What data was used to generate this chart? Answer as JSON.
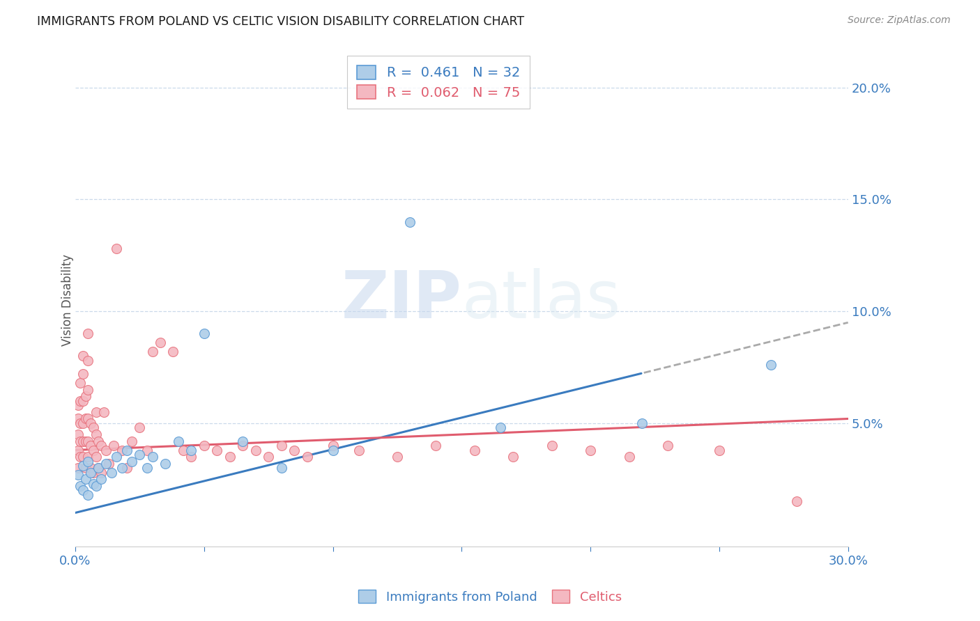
{
  "title": "IMMIGRANTS FROM POLAND VS CELTIC VISION DISABILITY CORRELATION CHART",
  "source": "Source: ZipAtlas.com",
  "ylabel": "Vision Disability",
  "x_min": 0.0,
  "x_max": 0.3,
  "y_min": -0.005,
  "y_max": 0.215,
  "y_ticks": [
    0.05,
    0.1,
    0.15,
    0.2
  ],
  "y_tick_labels": [
    "5.0%",
    "10.0%",
    "15.0%",
    "20.0%"
  ],
  "x_ticks": [
    0.0,
    0.05,
    0.1,
    0.15,
    0.2,
    0.25,
    0.3
  ],
  "blue_R": "0.461",
  "blue_N": "32",
  "pink_R": "0.062",
  "pink_N": "75",
  "blue_fill_color": "#aecde8",
  "pink_fill_color": "#f4b8c1",
  "blue_edge_color": "#5b9bd5",
  "pink_edge_color": "#e8737e",
  "blue_line_color": "#3a7bbf",
  "pink_line_color": "#e05c6e",
  "dash_color": "#aaaaaa",
  "watermark_color": "#d0dff0",
  "blue_points_x": [
    0.001,
    0.002,
    0.003,
    0.003,
    0.004,
    0.005,
    0.005,
    0.006,
    0.007,
    0.008,
    0.009,
    0.01,
    0.012,
    0.014,
    0.016,
    0.018,
    0.02,
    0.022,
    0.025,
    0.028,
    0.03,
    0.035,
    0.04,
    0.045,
    0.05,
    0.065,
    0.08,
    0.1,
    0.13,
    0.165,
    0.22,
    0.27
  ],
  "blue_points_y": [
    0.027,
    0.022,
    0.02,
    0.031,
    0.025,
    0.018,
    0.033,
    0.028,
    0.023,
    0.022,
    0.03,
    0.025,
    0.032,
    0.028,
    0.035,
    0.03,
    0.038,
    0.033,
    0.036,
    0.03,
    0.035,
    0.032,
    0.042,
    0.038,
    0.09,
    0.042,
    0.03,
    0.038,
    0.14,
    0.048,
    0.05,
    0.076
  ],
  "pink_points_x": [
    0.001,
    0.001,
    0.001,
    0.001,
    0.001,
    0.002,
    0.002,
    0.002,
    0.002,
    0.002,
    0.003,
    0.003,
    0.003,
    0.003,
    0.003,
    0.003,
    0.004,
    0.004,
    0.004,
    0.004,
    0.005,
    0.005,
    0.005,
    0.005,
    0.005,
    0.005,
    0.006,
    0.006,
    0.006,
    0.007,
    0.007,
    0.007,
    0.008,
    0.008,
    0.008,
    0.009,
    0.009,
    0.01,
    0.01,
    0.011,
    0.012,
    0.013,
    0.015,
    0.016,
    0.018,
    0.02,
    0.022,
    0.025,
    0.028,
    0.03,
    0.033,
    0.038,
    0.042,
    0.045,
    0.05,
    0.055,
    0.06,
    0.065,
    0.07,
    0.075,
    0.08,
    0.085,
    0.09,
    0.1,
    0.11,
    0.125,
    0.14,
    0.155,
    0.17,
    0.185,
    0.2,
    0.215,
    0.23,
    0.25,
    0.28
  ],
  "pink_points_y": [
    0.038,
    0.045,
    0.052,
    0.058,
    0.03,
    0.035,
    0.042,
    0.05,
    0.06,
    0.068,
    0.035,
    0.042,
    0.05,
    0.06,
    0.072,
    0.08,
    0.042,
    0.052,
    0.062,
    0.03,
    0.035,
    0.042,
    0.052,
    0.065,
    0.078,
    0.09,
    0.04,
    0.05,
    0.03,
    0.048,
    0.038,
    0.028,
    0.045,
    0.055,
    0.035,
    0.042,
    0.03,
    0.04,
    0.028,
    0.055,
    0.038,
    0.032,
    0.04,
    0.128,
    0.038,
    0.03,
    0.042,
    0.048,
    0.038,
    0.082,
    0.086,
    0.082,
    0.038,
    0.035,
    0.04,
    0.038,
    0.035,
    0.04,
    0.038,
    0.035,
    0.04,
    0.038,
    0.035,
    0.04,
    0.038,
    0.035,
    0.04,
    0.038,
    0.035,
    0.04,
    0.038,
    0.035,
    0.04,
    0.038,
    0.015
  ],
  "blue_line_x_start": 0.0,
  "blue_line_x_solid_end": 0.22,
  "blue_line_x_end": 0.3,
  "blue_line_y_start": 0.01,
  "blue_line_y_at_solid_end": 0.079,
  "blue_line_y_end": 0.095,
  "pink_line_y_start": 0.038,
  "pink_line_y_end": 0.052
}
